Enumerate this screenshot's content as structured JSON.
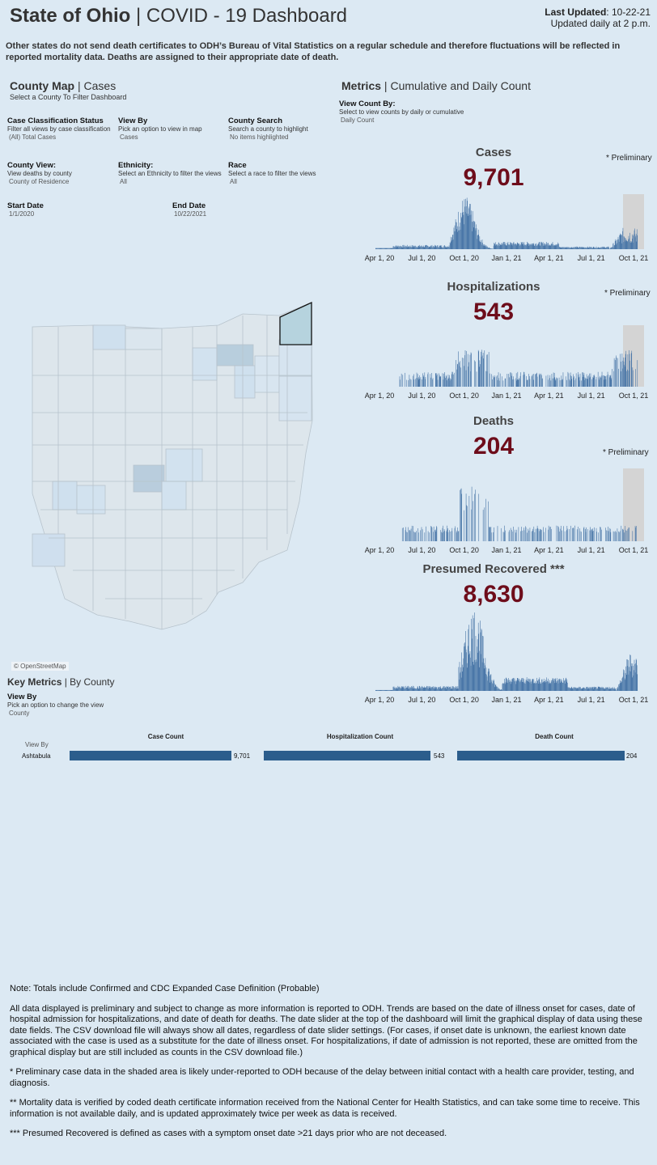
{
  "header": {
    "title_bold": "State of Ohio",
    "title_sep": " | ",
    "title_rest": "COVID - 19 Dashboard",
    "last_updated_label": "Last Updated",
    "last_updated_value": ": 10-22-21",
    "update_frequency": "Updated daily at 2 p.m."
  },
  "notice": "Other states do not send death certificates to ODH’s Bureau of Vital Statistics on a regular schedule and therefore fluctuations will be reflected in reported mortality data. Deaths are assigned to their appropriate date of death.",
  "county_map": {
    "title_bold": "County Map",
    "title_sep": " | ",
    "title_rest": "Cases",
    "subtitle": "Select a County To Filter Dashboard",
    "attribution": "© OpenStreetMap"
  },
  "filters": {
    "case_status": {
      "label": "Case Classification Status",
      "desc": "Filter all views by case classification",
      "value": "(All) Total Cases"
    },
    "view_by": {
      "label": "View By",
      "desc": "Pick an option to view in map",
      "value": "Cases"
    },
    "county_search": {
      "label": "County Search",
      "desc": "Search a county to highlight",
      "value": "No items highlighted"
    },
    "county_view": {
      "label": "County View:",
      "desc": "View deaths by county",
      "value": "County of Residence"
    },
    "ethnicity": {
      "label": "Ethnicity:",
      "desc": "Select an Ethnicity to filter the views",
      "value": "All"
    },
    "race": {
      "label": "Race",
      "desc": "Select a race to filter the views",
      "value": "All"
    },
    "start_date": {
      "label": "Start Date",
      "value": "1/1/2020"
    },
    "end_date": {
      "label": "End Date",
      "value": "10/22/2021"
    }
  },
  "metrics": {
    "title_bold": "Metrics",
    "title_sep": " | ",
    "title_rest": "Cumulative and Daily Count",
    "view_count_label": "View Count By:",
    "view_count_desc": "Select to view counts by daily or cumulative",
    "view_count_value": "Daily Count",
    "preliminary": "* Preliminary",
    "x_ticks": [
      "Apr 1, 20",
      "Jul 1, 20",
      "Oct 1, 20",
      "Jan 1, 21",
      "Apr 1, 21",
      "Jul 1, 21",
      "Oct 1, 21"
    ],
    "cases": {
      "title": "Cases",
      "value": "9,701"
    },
    "hospitalizations": {
      "title": "Hospitalizations",
      "value": "543"
    },
    "deaths": {
      "title": "Deaths",
      "value": "204"
    },
    "recovered": {
      "title": "Presumed Recovered ***",
      "value": "8,630"
    }
  },
  "key_metrics": {
    "title_bold": "Key Metrics",
    "title_sep": " | ",
    "title_rest": "By County",
    "view_by_label": "View By",
    "view_by_desc": "Pick an option to change the view",
    "view_by_value": "County",
    "row_header": "View By",
    "columns": [
      "Case Count",
      "Hospitalization Count",
      "Death Count"
    ],
    "rows": [
      {
        "county": "Ashtabula",
        "case_count": "9,701",
        "hospitalization_count": "543",
        "death_count": "204",
        "case_value": 9701,
        "hospitalization_value": 543,
        "death_value": 204
      }
    ]
  },
  "notes": [
    "Note: Totals include Confirmed and CDC Expanded Case Definition (Probable)",
    "All data displayed is preliminary and subject to change as more information is reported to ODH. Trends are based on the date of illness onset for cases, date of hospital admission for hospitalizations, and date of death for deaths. The date slider at the top of the dashboard will limit the graphical display of data using these date fields. The CSV download file will always show all dates, regardless of date slider settings. (For cases, if onset date is unknown, the earliest known date associated with the case is used as a substitute for the date of illness onset. For hospitalizations, if date of admission is not reported, these are omitted from the graphical display but are still included as counts in the CSV download file.)",
    "* Preliminary case data in the shaded area is likely under-reported to ODH because of the delay between initial contact with a health care provider, testing, and diagnosis.",
    "** Mortality data is verified by coded death certificate information received from the National Center for Health Statistics, and can take some time to receive. This information is not available daily, and is updated approximately twice per week as data is received.",
    "*** Presumed Recovered is defined as cases with a symptom onset date >21 days prior who are not deceased."
  ],
  "colors": {
    "background": "#dce9f3",
    "accent_number": "#6e0d1b",
    "bar": "#4a77a8",
    "preliminary_shade": "#d4d4d4",
    "county_bar": "#2b5d8c"
  }
}
